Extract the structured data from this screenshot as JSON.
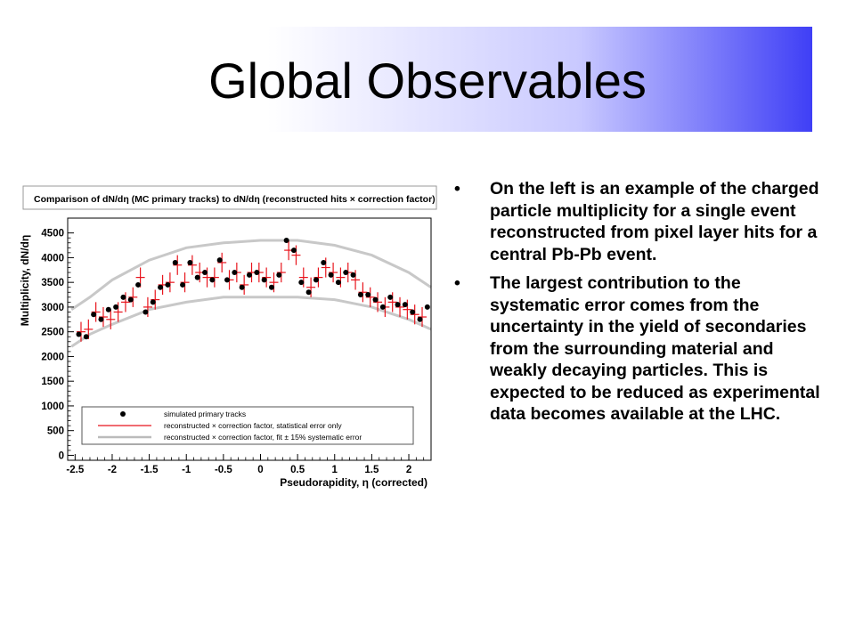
{
  "slide": {
    "title": "Global Observables",
    "bullets": [
      {
        "marker": "•",
        "text": "On the left is an example of the charged particle multiplicity for a single event reconstructed from pixel layer hits for a central Pb-Pb event."
      },
      {
        "marker": "•",
        "text": "The largest contribution to the systematic error comes from the uncertainty in the yield of secondaries from the surrounding material and weakly decaying particles. This is expected to be reduced as experimental data becomes available at the LHC."
      }
    ]
  },
  "colors": {
    "title_gradient_end": "#3f3ff6",
    "simulated": "#000000",
    "reconstructed": "#e8141c",
    "band": "#c8c8c8"
  },
  "chart_data": {
    "type": "scatter",
    "title": "Comparison of dN/dη (MC primary tracks) to dN/dη (reconstructed hits × correction factor)",
    "xlabel": "Pseudorapidity, η (corrected)",
    "ylabel": "Multiplicity, dN/dη",
    "xlim": [
      -2.6,
      2.3
    ],
    "ylim": [
      -100,
      4800
    ],
    "xticks": [
      -2.5,
      -2,
      -1.5,
      -1,
      -0.5,
      0,
      0.5,
      1,
      1.5,
      2
    ],
    "xtick_labels": [
      "-2.5",
      "-2",
      "-1.5",
      "-1",
      "-0.5",
      "0",
      "0.5",
      "1",
      "1.5",
      "2"
    ],
    "yticks": [
      0,
      500,
      1000,
      1500,
      2000,
      2500,
      3000,
      3500,
      4000,
      4500
    ],
    "ytick_labels": [
      "0",
      "500",
      "1000",
      "1500",
      "2000",
      "2500",
      "3000",
      "3500",
      "4000",
      "4500"
    ],
    "legend": {
      "placement": "bottom-right",
      "entries": [
        "simulated primary tracks",
        "reconstructed × correction factor, statistical error only",
        "reconstructed × correction factor, fit ± 15% systematic error"
      ]
    },
    "series": [
      {
        "name": "simulated primary tracks",
        "kind": "points",
        "x": [
          -2.45,
          -2.35,
          -2.25,
          -2.15,
          -2.05,
          -1.95,
          -1.85,
          -1.75,
          -1.65,
          -1.55,
          -1.45,
          -1.35,
          -1.25,
          -1.15,
          -1.05,
          -0.95,
          -0.85,
          -0.75,
          -0.65,
          -0.55,
          -0.45,
          -0.35,
          -0.25,
          -0.15,
          -0.05,
          0.05,
          0.15,
          0.25,
          0.35,
          0.45,
          0.55,
          0.65,
          0.75,
          0.85,
          0.95,
          1.05,
          1.15,
          1.25,
          1.35,
          1.45,
          1.55,
          1.65,
          1.75,
          1.85,
          1.95,
          2.05,
          2.15,
          2.25
        ],
        "y": [
          2450,
          2400,
          2850,
          2750,
          2950,
          3000,
          3200,
          3150,
          3450,
          2900,
          3100,
          3400,
          3450,
          3900,
          3450,
          3900,
          3600,
          3700,
          3550,
          3950,
          3550,
          3700,
          3400,
          3650,
          3700,
          3550,
          3400,
          3650,
          4350,
          4150,
          3500,
          3300,
          3550,
          3900,
          3650,
          3500,
          3700,
          3650,
          3250,
          3250,
          3150,
          3000,
          3200,
          3050,
          3050,
          2900,
          2750,
          3000
        ]
      },
      {
        "name": "reconstructed × correction factor, statistical error only",
        "kind": "error_crosses",
        "x": [
          -2.42,
          -2.32,
          -2.22,
          -2.12,
          -2.02,
          -1.92,
          -1.82,
          -1.72,
          -1.62,
          -1.52,
          -1.42,
          -1.32,
          -1.22,
          -1.12,
          -1.02,
          -0.92,
          -0.82,
          -0.72,
          -0.62,
          -0.52,
          -0.42,
          -0.32,
          -0.22,
          -0.12,
          -0.02,
          0.08,
          0.18,
          0.28,
          0.38,
          0.48,
          0.58,
          0.68,
          0.78,
          0.88,
          0.98,
          1.08,
          1.18,
          1.28,
          1.38,
          1.48,
          1.58,
          1.68,
          1.78,
          1.88,
          1.98,
          2.08,
          2.18
        ],
        "y": [
          2500,
          2550,
          2900,
          2800,
          2750,
          2900,
          3100,
          3200,
          3600,
          3000,
          3150,
          3450,
          3500,
          3850,
          3500,
          3850,
          3700,
          3600,
          3600,
          3900,
          3550,
          3700,
          3450,
          3700,
          3700,
          3600,
          3500,
          3700,
          4150,
          4050,
          3600,
          3400,
          3600,
          3800,
          3700,
          3600,
          3700,
          3550,
          3300,
          3200,
          3100,
          3000,
          3100,
          3000,
          2950,
          2850,
          2800
        ],
        "yerr": 200
      },
      {
        "name": "reconstructed × correction factor, fit ± 15% systematic error",
        "kind": "band",
        "x": [
          -2.55,
          -2.3,
          -2.0,
          -1.5,
          -1.0,
          -0.5,
          0.0,
          0.5,
          1.0,
          1.5,
          2.0,
          2.3
        ],
        "upper": [
          2950,
          3200,
          3550,
          3950,
          4200,
          4300,
          4350,
          4350,
          4250,
          4050,
          3700,
          3400
        ],
        "lower": [
          2200,
          2450,
          2650,
          2950,
          3100,
          3200,
          3200,
          3200,
          3150,
          3000,
          2750,
          2550
        ]
      }
    ]
  }
}
